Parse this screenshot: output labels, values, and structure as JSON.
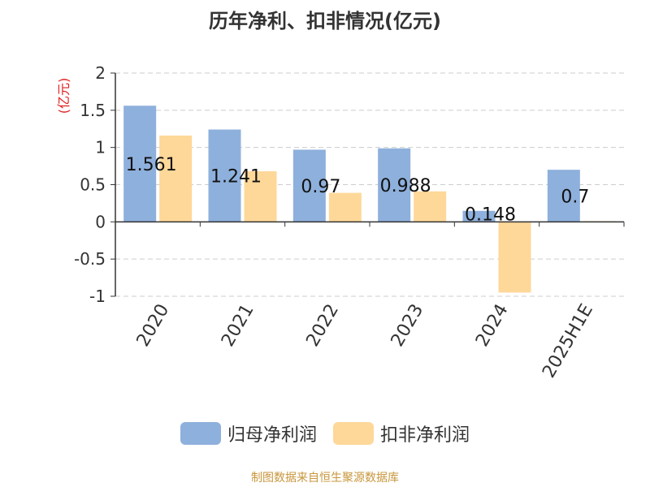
{
  "title": "历年净利、扣非情况(亿元)",
  "source": "制图数据来自恒生聚源数据库",
  "chart_data": {
    "type": "bar",
    "title": "历年净利、扣非情况(亿元)",
    "ylabel": "(亿元)",
    "xlabel": "",
    "ylim": [
      -1,
      2
    ],
    "yticks": [
      2,
      1.5,
      1,
      0.5,
      0,
      -0.5,
      -1
    ],
    "ytick_labels": [
      "2",
      "1.5",
      "1",
      "0.5",
      "0",
      "-0.5",
      "-1"
    ],
    "grid": true,
    "legend": "bottom-center",
    "categories": [
      "2020",
      "2021",
      "2022",
      "2023",
      "2024",
      "2025H1E"
    ],
    "series": [
      {
        "name": "归母净利润",
        "color": "#8eb0dc",
        "values": [
          1.561,
          1.241,
          0.97,
          0.988,
          0.148,
          0.7
        ],
        "labels": [
          "1.561",
          "1.241",
          "0.97",
          "0.988",
          "0.148",
          "0.7"
        ]
      },
      {
        "name": "扣非净利润",
        "color": "#fed899",
        "values": [
          1.16,
          0.68,
          0.39,
          0.41,
          -0.95,
          0.01
        ]
      }
    ]
  }
}
